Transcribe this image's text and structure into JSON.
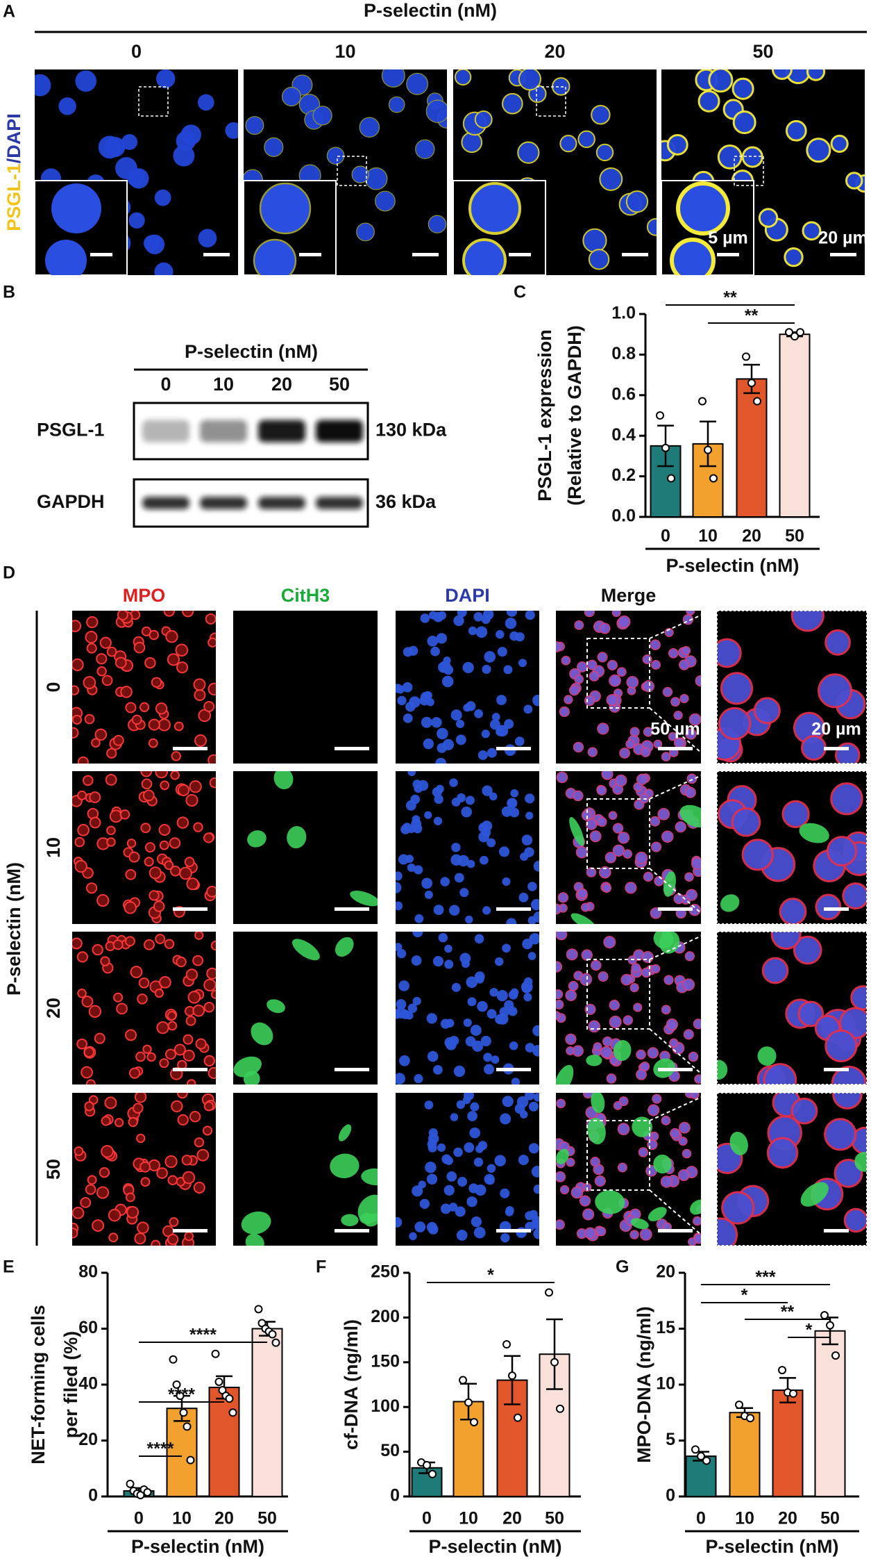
{
  "panel_a": {
    "label": "A",
    "title": "P-selectin (nM)",
    "columns": [
      "0",
      "10",
      "20",
      "50"
    ],
    "channel_1": "PSGL-1",
    "channel_sep": "/",
    "channel_2": "DAPI",
    "scale_inset": "5 µm",
    "scale_main": "20 µm"
  },
  "panel_b": {
    "label": "B",
    "title": "P-selectin (nM)",
    "lanes": [
      "0",
      "10",
      "20",
      "50"
    ],
    "rows": [
      {
        "name": "PSGL-1",
        "size": "130 kDa"
      },
      {
        "name": "GAPDH",
        "size": "36 kDa"
      }
    ]
  },
  "panel_d": {
    "label": "D",
    "columns": [
      "MPO",
      "CitH3",
      "DAPI",
      "Merge"
    ],
    "row_title": "P-selectin (nM)",
    "rows": [
      "0",
      "10",
      "20",
      "50"
    ],
    "scale_main": "50 µm",
    "scale_zoom": "20 µm"
  },
  "chart_data": [
    {
      "label": "C",
      "type": "bar",
      "y_label": [
        "PSGL-1 expression",
        "(Relative to GAPDH)"
      ],
      "x_label": "P-selectin (nM)",
      "categories": [
        "0",
        "10",
        "20",
        "50"
      ],
      "values": [
        0.35,
        0.36,
        0.68,
        0.9
      ],
      "errors": [
        0.1,
        0.11,
        0.07,
        0.01
      ],
      "points": [
        [
          0.5,
          0.34,
          0.19
        ],
        [
          0.57,
          0.33,
          0.19
        ],
        [
          0.79,
          0.66,
          0.57
        ],
        [
          0.91,
          0.89,
          0.91
        ]
      ],
      "colors": [
        "#1f7b78",
        "#f2a12e",
        "#e1562a",
        "#f9e1da"
      ],
      "ylim": [
        0,
        1
      ],
      "yticks": [
        {
          "value": 0,
          "label": "0.0"
        },
        {
          "value": 0.2,
          "label": "0.2"
        },
        {
          "value": 0.4,
          "label": "0.4"
        },
        {
          "value": 0.6,
          "label": "0.6"
        },
        {
          "value": 0.8,
          "label": "0.8"
        },
        {
          "value": 1,
          "label": "1.0"
        }
      ],
      "annotations": [
        "**",
        "**"
      ]
    },
    {
      "label": "E",
      "type": "bar",
      "y_label": [
        "NET-forming cells",
        "per filed (%)"
      ],
      "x_label": "P-selectin (nM)",
      "categories": [
        "0",
        "10",
        "20",
        "50"
      ],
      "values": [
        2,
        31.5,
        39,
        60
      ],
      "errors": [
        1,
        4.5,
        4,
        2.5
      ],
      "points": [
        [
          4.5,
          2,
          1,
          0.5,
          2.5,
          1.5
        ],
        [
          49,
          40,
          36,
          30,
          25,
          13
        ],
        [
          51,
          41,
          38,
          36,
          35,
          30
        ],
        [
          67,
          62,
          60,
          59,
          58,
          55
        ]
      ],
      "colors": [
        "#1f7b78",
        "#f2a12e",
        "#e1562a",
        "#f9e1da"
      ],
      "ylim": [
        0,
        80
      ],
      "yticks": [
        0,
        20,
        40,
        60,
        80
      ],
      "annotations": [
        "****",
        "****",
        "****"
      ]
    },
    {
      "label": "F",
      "type": "bar",
      "y_label": [
        "cf-DNA (ng/ml)"
      ],
      "x_label": "P-selectin (nM)",
      "categories": [
        "0",
        "10",
        "20",
        "50"
      ],
      "values": [
        32,
        106,
        130,
        159
      ],
      "errors": [
        6,
        20,
        27,
        39
      ],
      "points": [
        [
          38,
          35,
          25
        ],
        [
          130,
          105,
          83
        ],
        [
          170,
          135,
          88
        ],
        [
          228,
          150,
          98
        ]
      ],
      "colors": [
        "#1f7b78",
        "#f2a12e",
        "#e1562a",
        "#f9e1da"
      ],
      "ylim": [
        0,
        250
      ],
      "yticks": [
        0,
        50,
        100,
        150,
        200,
        250
      ],
      "annotations": [
        "*"
      ]
    },
    {
      "label": "G",
      "type": "bar",
      "y_label": [
        "MPO-DNA (ng/ml)"
      ],
      "x_label": "P-selectin (nM)",
      "categories": [
        "0",
        "10",
        "20",
        "50"
      ],
      "values": [
        3.6,
        7.5,
        9.5,
        14.8
      ],
      "errors": [
        0.4,
        0.4,
        1.1,
        1.2
      ],
      "points": [
        [
          4.2,
          3.6,
          3.2
        ],
        [
          8.2,
          7.2,
          7
        ],
        [
          11.3,
          9.3,
          9.2
        ],
        [
          16.2,
          15.3,
          12.6
        ]
      ],
      "colors": [
        "#1f7b78",
        "#f2a12e",
        "#e1562a",
        "#f9e1da"
      ],
      "ylim": [
        0,
        20
      ],
      "yticks": [
        0,
        5,
        10,
        15,
        20
      ],
      "annotations": [
        "***",
        "*",
        "**",
        "*"
      ]
    }
  ]
}
